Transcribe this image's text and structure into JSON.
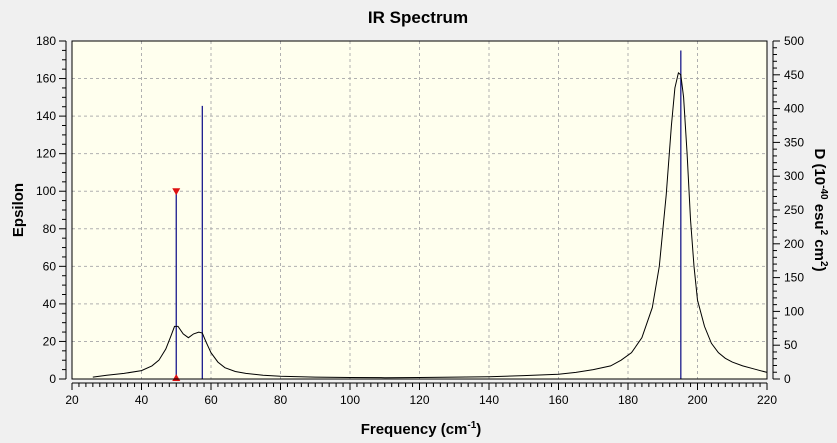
{
  "chart_data": {
    "type": "line",
    "title": "IR Spectrum",
    "xlabel": "Frequency (cm",
    "xlabel_sup": "-1",
    "xlabel_end": ")",
    "ylabel": "Epsilon",
    "y2label_parts": [
      "D (10",
      "-40",
      " esu",
      "2",
      " cm",
      "2",
      ")"
    ],
    "xlim": [
      20,
      220
    ],
    "ylim": [
      0,
      180
    ],
    "y2lim": [
      0,
      500
    ],
    "xticks": [
      20,
      40,
      60,
      80,
      100,
      120,
      140,
      160,
      180,
      200,
      220
    ],
    "yticks": [
      0,
      20,
      40,
      60,
      80,
      100,
      120,
      140,
      160,
      180
    ],
    "y2ticks": [
      0,
      50,
      100,
      150,
      200,
      250,
      300,
      350,
      400,
      450,
      500
    ],
    "grid": true,
    "series": [
      {
        "x": [
          26,
          30,
          35,
          40,
          43,
          45,
          47,
          48.5,
          49.5,
          50.5,
          52,
          53.5,
          55,
          56.5,
          57.5,
          58.5,
          60,
          62,
          64,
          67,
          70,
          75,
          80,
          90,
          100,
          110,
          120,
          130,
          140,
          150,
          160,
          165,
          170,
          175,
          178,
          181,
          184,
          187,
          189,
          191,
          192.5,
          193.5,
          194.5,
          195.2,
          196,
          197,
          198,
          199,
          200,
          202,
          204,
          206,
          208,
          210,
          213,
          216,
          220
        ],
        "y": [
          1,
          2,
          3,
          4.5,
          7,
          10,
          16,
          23,
          28,
          28,
          24,
          22,
          24,
          25,
          24.5,
          20,
          14,
          9,
          6,
          4,
          3,
          2,
          1.5,
          1,
          0.8,
          0.7,
          0.8,
          1,
          1.2,
          1.8,
          2.5,
          3.5,
          5,
          7,
          10,
          14,
          22,
          38,
          60,
          98,
          135,
          155,
          163,
          162,
          150,
          120,
          85,
          60,
          42,
          28,
          19,
          14,
          11,
          9,
          7,
          5.5,
          3.5
        ]
      }
    ],
    "sticks": [
      {
        "x": 50,
        "d": 278
      },
      {
        "x": 57.5,
        "d": 404
      },
      {
        "x": 195.2,
        "d": 486
      }
    ],
    "markers": [
      {
        "x": 50,
        "y": 0
      },
      {
        "x": 50,
        "y": 100
      }
    ],
    "colors": {
      "background": "#f0f0f0",
      "plot_area": "#ffffee",
      "grid": "#b0b0b0",
      "curve": "#000000",
      "sticks": "#1a1a8c",
      "marker": "#dd1111",
      "frame": "#000000"
    }
  }
}
